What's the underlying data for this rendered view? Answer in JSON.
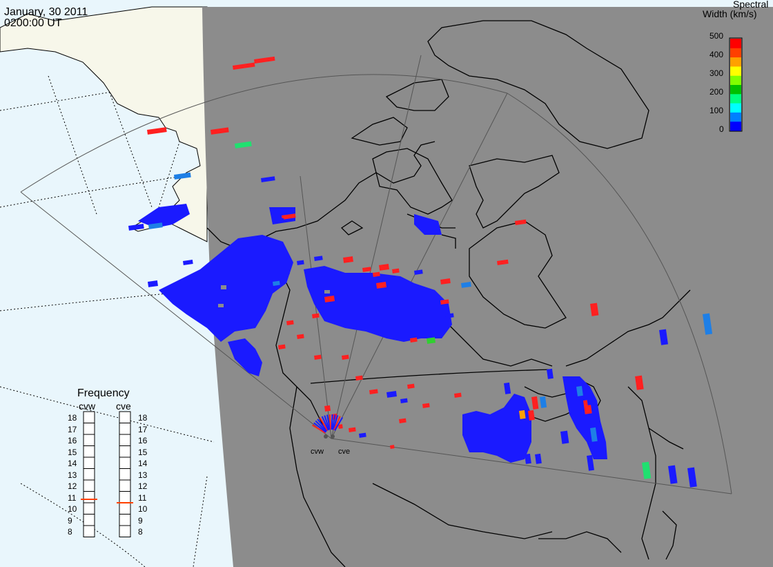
{
  "header": {
    "date": "January, 30 2011",
    "time": "0200:00 UT"
  },
  "colorbar": {
    "title_line1": "Spectral",
    "title_line2": "Width (km/s)",
    "min": 0,
    "max": 500,
    "ticks": [
      "500",
      "400",
      "300",
      "200",
      "100",
      "0"
    ],
    "colors": [
      "#0000ff",
      "#0080ff",
      "#00ffff",
      "#00ff80",
      "#00c000",
      "#80ff00",
      "#ffff00",
      "#ffa000",
      "#ff4000",
      "#ff0000"
    ]
  },
  "radars": [
    {
      "code": "cvw",
      "label": "cvw"
    },
    {
      "code": "cve",
      "label": "cve"
    }
  ],
  "frequency_panel": {
    "title": "Frequency",
    "scale_labels": [
      "18",
      "17",
      "16",
      "15",
      "14",
      "13",
      "12",
      "11",
      "10",
      "9",
      "8"
    ],
    "range_mhz": [
      8,
      18
    ],
    "cvw_frequency_mhz": 10.8,
    "cve_frequency_mhz": 10.5,
    "marker_color": "#ff4000"
  },
  "map_colors": {
    "ocean": "#e9f6fc",
    "land": "#f7f7ea",
    "nightside": "#8c8c8c",
    "coast": "#000000"
  }
}
